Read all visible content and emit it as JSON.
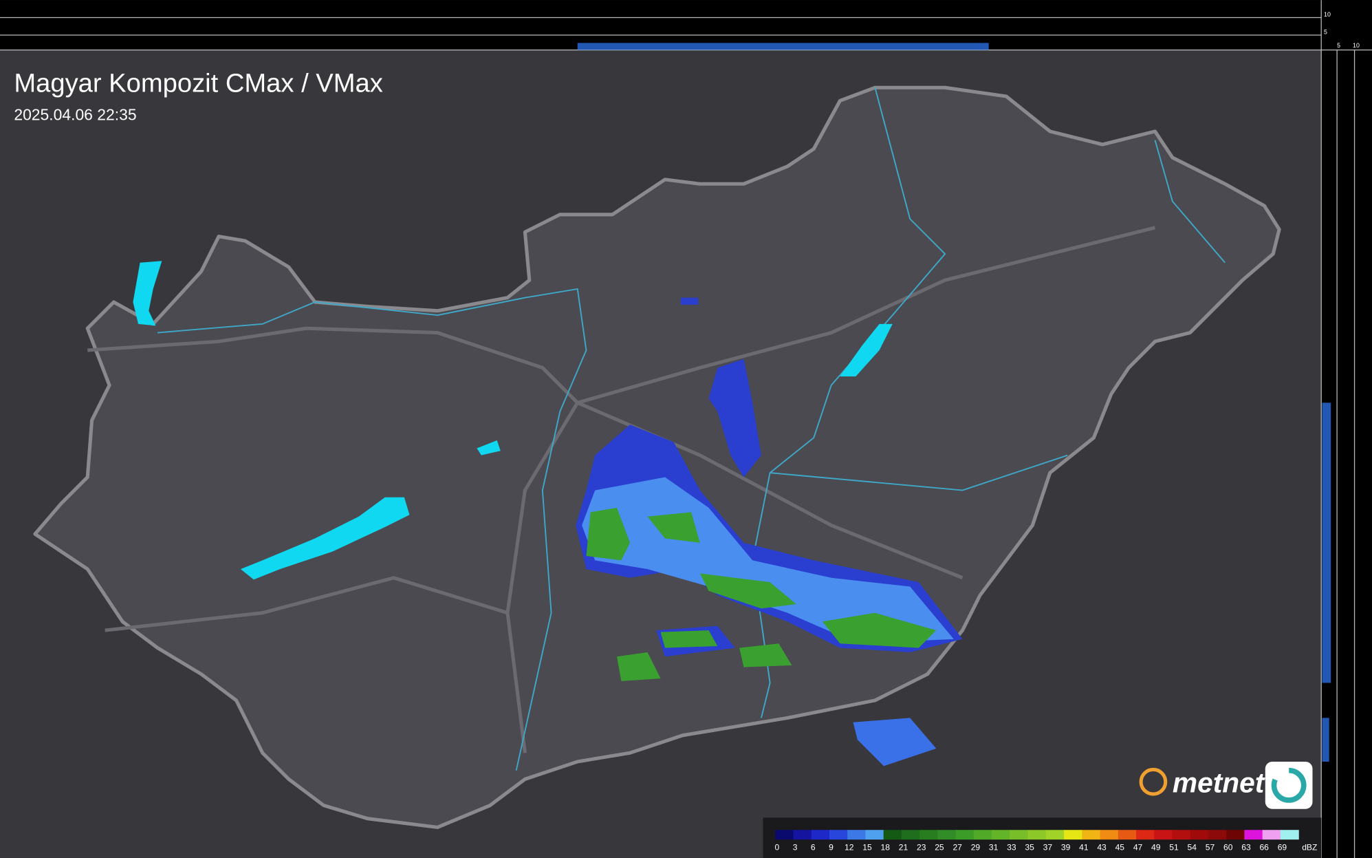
{
  "header": {
    "title": "Magyar Kompozit CMax / VMax",
    "timestamp": "2025.04.06 22:35"
  },
  "profile_axes": {
    "top": [
      "10",
      "5"
    ],
    "side": [
      "5",
      "10"
    ]
  },
  "legend": {
    "ticks": [
      0,
      3,
      6,
      9,
      12,
      15,
      18,
      21,
      23,
      25,
      27,
      29,
      31,
      33,
      35,
      37,
      39,
      41,
      43,
      45,
      47,
      49,
      51,
      54,
      57,
      60,
      63,
      66,
      69
    ],
    "unit": "dBZ",
    "colors": [
      "#0a0a6e",
      "#1414a0",
      "#1e28c8",
      "#2846dc",
      "#3c78e6",
      "#50a0f0",
      "#145a14",
      "#1e6e1e",
      "#287d1e",
      "#328c28",
      "#3c9c28",
      "#50aa28",
      "#64b428",
      "#78be28",
      "#8cc828",
      "#a0d228",
      "#e6e614",
      "#f0b414",
      "#f08c14",
      "#e65a14",
      "#dc2814",
      "#c81414",
      "#b40f0f",
      "#a00a0a",
      "#8c0a0a",
      "#6e0505",
      "#dc14dc",
      "#f0a0f0",
      "#a0f0f0"
    ]
  },
  "logo": {
    "text": "metnet"
  }
}
